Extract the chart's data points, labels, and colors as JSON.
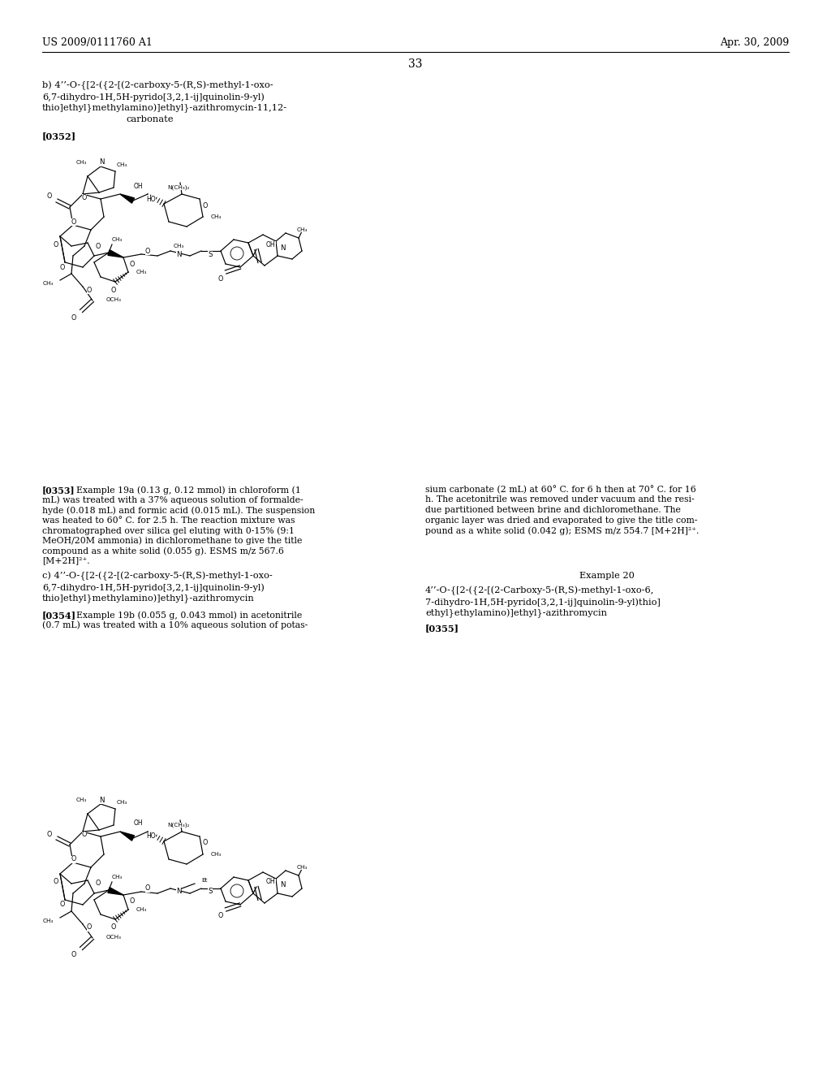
{
  "bg_color": "#ffffff",
  "page_number": "33",
  "header_left": "US 2009/0111760 A1",
  "header_right": "Apr. 30, 2009",
  "title_b_line1": "b) 4’’-O-{[2-({2-[(2-carboxy-5-(R,S)-methyl-1-oxo-",
  "title_b_line2": "6,7-dihydro-1H,5H-pyrido[3,2,1-ij]quinolin-9-yl)",
  "title_b_line3": "thio]ethyl}methylamino)]ethyl}-azithromycin-11,12-",
  "title_b_line4": "carbonate",
  "ref_0352": "[0352]",
  "ref_0353": "[0353]",
  "ref_0354": "[0354]",
  "ref_0355": "[0355]",
  "title_c_line1": "c) 4’’-O-{[2-({2-[(2-carboxy-5-(R,S)-methyl-1-oxo-",
  "title_c_line2": "6,7-dihydro-1H,5H-pyrido[3,2,1-ij]quinolin-9-yl)",
  "title_c_line3": "thio]ethyl}methylamino)]ethyl}-azithromycin",
  "example_20_header": "Example 20",
  "example_20_line1": "4’’-O-{[2-({2-[(2-Carboxy-5-(R,S)-methyl-1-oxo-6,",
  "example_20_line2": "7-dihydro-1H,5H-pyrido[3,2,1-ij]quinolin-9-yl)thio]",
  "example_20_line3": "ethyl}ethylamino)]ethyl}-azithromycin",
  "para_0353_left_lines": [
    "Example 19a (0.13 g, 0.12 mmol) in chloroform (1",
    "mL) was treated with a 37% aqueous solution of formalde-",
    "hyde (0.018 mL) and formic acid (0.015 mL). The suspension",
    "was heated to 60° C. for 2.5 h. The reaction mixture was",
    "chromatographed over silica gel eluting with 0-15% (9:1",
    "MeOH/20M ammonia) in dichloromethane to give the title",
    "compound as a white solid (0.055 g). ESMS m/z 567.6",
    "[M+2H]²⁺."
  ],
  "para_0353_right_lines": [
    "sium carbonate (2 mL) at 60° C. for 6 h then at 70° C. for 16",
    "h. The acetonitrile was removed under vacuum and the resi-",
    "due partitioned between brine and dichloromethane. The",
    "organic layer was dried and evaporated to give the title com-",
    "pound as a white solid (0.042 g); ESMS m/z 554.7 [M+2H]²⁺."
  ],
  "para_0354_lines": [
    "Example 19b (0.055 g, 0.043 mmol) in acetonitrile",
    "(0.7 mL) was treated with a 10% aqueous solution of potas-"
  ]
}
